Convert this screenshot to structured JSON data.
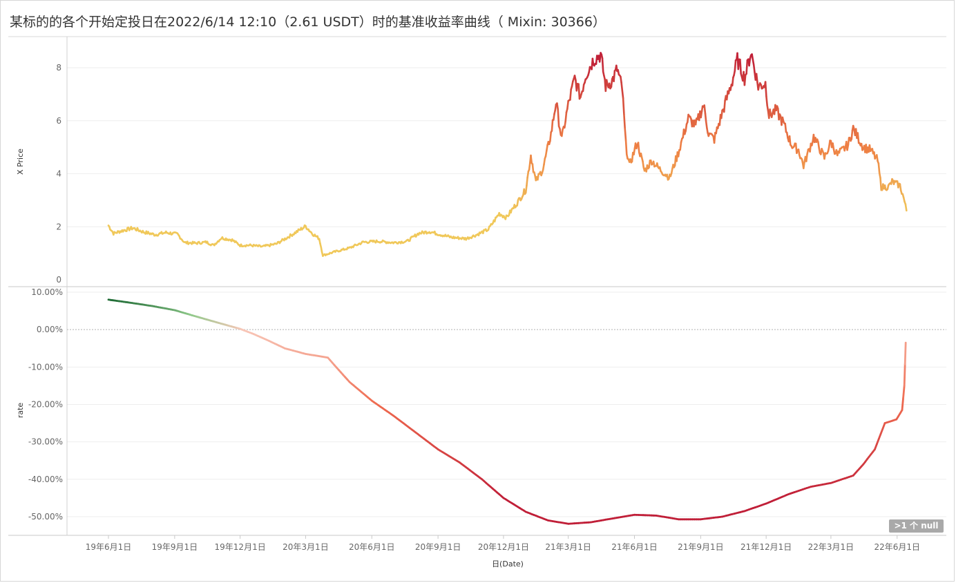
{
  "title": "某标的的各个开始定投日在2022/6/14 12:10（2.61 USDT）时的基准收益率曲线（ Mixin: 30366）",
  "null_badge": ">1 个 null",
  "colors": {
    "price_low": "#f0c85a",
    "price_mid": "#ee8044",
    "price_high": "#c01f38",
    "rate_pos_strong": "#1f6b35",
    "rate_pos_weak": "#8fc98a",
    "rate_zero": "#f8c7b8",
    "rate_neg_mid": "#ef6a4f",
    "rate_neg_strong": "#c01f38",
    "grid": "#eeeeee",
    "zero_line": "#b0b0b0"
  },
  "chart_data": [
    {
      "type": "line",
      "ylabel": "X Price",
      "ylim": [
        0,
        9
      ],
      "yticks": [
        0,
        2,
        4,
        6,
        8
      ],
      "x_range": [
        "2019-06-01",
        "2022-07-01"
      ],
      "series": [
        {
          "values": [
            [
              "2019-06-01",
              2.05
            ],
            [
              "2019-06-08",
              1.75
            ],
            [
              "2019-06-20",
              1.85
            ],
            [
              "2019-07-05",
              1.95
            ],
            [
              "2019-07-20",
              1.8
            ],
            [
              "2019-08-05",
              1.7
            ],
            [
              "2019-08-20",
              1.78
            ],
            [
              "2019-09-05",
              1.72
            ],
            [
              "2019-09-15",
              1.4
            ],
            [
              "2019-10-01",
              1.38
            ],
            [
              "2019-10-15",
              1.42
            ],
            [
              "2019-10-25",
              1.3
            ],
            [
              "2019-11-05",
              1.58
            ],
            [
              "2019-11-20",
              1.5
            ],
            [
              "2019-12-01",
              1.3
            ],
            [
              "2019-12-15",
              1.3
            ],
            [
              "2020-01-01",
              1.25
            ],
            [
              "2020-01-20",
              1.35
            ],
            [
              "2020-02-05",
              1.6
            ],
            [
              "2020-02-20",
              1.85
            ],
            [
              "2020-03-01",
              2.02
            ],
            [
              "2020-03-10",
              1.75
            ],
            [
              "2020-03-20",
              1.55
            ],
            [
              "2020-03-25",
              0.92
            ],
            [
              "2020-04-10",
              1.05
            ],
            [
              "2020-05-01",
              1.2
            ],
            [
              "2020-05-20",
              1.42
            ],
            [
              "2020-06-10",
              1.45
            ],
            [
              "2020-07-01",
              1.4
            ],
            [
              "2020-07-20",
              1.45
            ],
            [
              "2020-08-05",
              1.75
            ],
            [
              "2020-08-20",
              1.82
            ],
            [
              "2020-09-05",
              1.7
            ],
            [
              "2020-09-20",
              1.6
            ],
            [
              "2020-10-10",
              1.55
            ],
            [
              "2020-10-25",
              1.7
            ],
            [
              "2020-11-10",
              1.9
            ],
            [
              "2020-11-25",
              2.5
            ],
            [
              "2020-12-05",
              2.35
            ],
            [
              "2020-12-20",
              2.9
            ],
            [
              "2021-01-01",
              3.4
            ],
            [
              "2021-01-08",
              4.7
            ],
            [
              "2021-01-15",
              3.7
            ],
            [
              "2021-01-25",
              4.2
            ],
            [
              "2021-02-05",
              5.5
            ],
            [
              "2021-02-12",
              6.7
            ],
            [
              "2021-02-20",
              5.3
            ],
            [
              "2021-03-01",
              6.6
            ],
            [
              "2021-03-10",
              7.6
            ],
            [
              "2021-03-18",
              6.9
            ],
            [
              "2021-03-25",
              7.7
            ],
            [
              "2021-04-05",
              8.3
            ],
            [
              "2021-04-15",
              8.5
            ],
            [
              "2021-04-22",
              7.3
            ],
            [
              "2021-05-01",
              7.5
            ],
            [
              "2021-05-08",
              7.95
            ],
            [
              "2021-05-15",
              7.2
            ],
            [
              "2021-05-20",
              5.1
            ],
            [
              "2021-05-25",
              4.3
            ],
            [
              "2021-06-05",
              5.2
            ],
            [
              "2021-06-15",
              4.1
            ],
            [
              "2021-06-25",
              4.5
            ],
            [
              "2021-07-05",
              4.2
            ],
            [
              "2021-07-20",
              3.85
            ],
            [
              "2021-08-01",
              4.8
            ],
            [
              "2021-08-15",
              6.1
            ],
            [
              "2021-08-25",
              5.8
            ],
            [
              "2021-09-05",
              6.6
            ],
            [
              "2021-09-12",
              5.5
            ],
            [
              "2021-09-20",
              5.3
            ],
            [
              "2021-10-01",
              6.3
            ],
            [
              "2021-10-15",
              7.5
            ],
            [
              "2021-10-22",
              8.3
            ],
            [
              "2021-11-01",
              7.6
            ],
            [
              "2021-11-10",
              8.6
            ],
            [
              "2021-11-20",
              7.3
            ],
            [
              "2021-11-30",
              7.4
            ],
            [
              "2021-12-05",
              6.2
            ],
            [
              "2021-12-15",
              6.4
            ],
            [
              "2021-12-25",
              5.9
            ],
            [
              "2022-01-05",
              5.1
            ],
            [
              "2022-01-15",
              4.9
            ],
            [
              "2022-01-22",
              4.3
            ],
            [
              "2022-02-05",
              5.4
            ],
            [
              "2022-02-20",
              4.6
            ],
            [
              "2022-03-01",
              5.2
            ],
            [
              "2022-03-10",
              4.7
            ],
            [
              "2022-03-25",
              5.1
            ],
            [
              "2022-04-01",
              5.7
            ],
            [
              "2022-04-15",
              5.0
            ],
            [
              "2022-04-25",
              4.9
            ],
            [
              "2022-05-05",
              4.5
            ],
            [
              "2022-05-10",
              3.5
            ],
            [
              "2022-05-20",
              3.5
            ],
            [
              "2022-05-25",
              3.7
            ],
            [
              "2022-06-05",
              3.55
            ],
            [
              "2022-06-10",
              3.1
            ],
            [
              "2022-06-14",
              2.61
            ]
          ]
        }
      ]
    },
    {
      "type": "line",
      "ylabel": "rate",
      "ylim": [
        -0.55,
        0.105
      ],
      "yticks": [
        0.1,
        0.0,
        -0.1,
        -0.2,
        -0.3,
        -0.4,
        -0.5
      ],
      "ytick_labels": [
        "10.00%",
        "0.00%",
        "-10.00%",
        "-20.00%",
        "-30.00%",
        "-40.00%",
        "-50.00%"
      ],
      "x_range": [
        "2019-06-01",
        "2022-07-01"
      ],
      "series": [
        {
          "values": [
            [
              "2019-06-01",
              0.08
            ],
            [
              "2019-07-01",
              0.072
            ],
            [
              "2019-08-01",
              0.063
            ],
            [
              "2019-09-01",
              0.052
            ],
            [
              "2019-10-01",
              0.035
            ],
            [
              "2019-11-01",
              0.018
            ],
            [
              "2019-12-01",
              0.002
            ],
            [
              "2019-12-20",
              -0.012
            ],
            [
              "2020-01-10",
              -0.03
            ],
            [
              "2020-02-01",
              -0.05
            ],
            [
              "2020-03-01",
              -0.065
            ],
            [
              "2020-04-01",
              -0.075
            ],
            [
              "2020-04-10",
              -0.095
            ],
            [
              "2020-05-01",
              -0.14
            ],
            [
              "2020-06-01",
              -0.19
            ],
            [
              "2020-07-01",
              -0.23
            ],
            [
              "2020-08-01",
              -0.275
            ],
            [
              "2020-09-01",
              -0.32
            ],
            [
              "2020-10-01",
              -0.355
            ],
            [
              "2020-11-01",
              -0.4
            ],
            [
              "2020-12-01",
              -0.45
            ],
            [
              "2021-01-01",
              -0.487
            ],
            [
              "2021-02-01",
              -0.51
            ],
            [
              "2021-03-01",
              -0.519
            ],
            [
              "2021-04-01",
              -0.515
            ],
            [
              "2021-05-01",
              -0.505
            ],
            [
              "2021-06-01",
              -0.495
            ],
            [
              "2021-07-01",
              -0.497
            ],
            [
              "2021-08-01",
              -0.507
            ],
            [
              "2021-09-01",
              -0.507
            ],
            [
              "2021-10-01",
              -0.5
            ],
            [
              "2021-11-01",
              -0.485
            ],
            [
              "2021-12-01",
              -0.465
            ],
            [
              "2022-01-01",
              -0.44
            ],
            [
              "2022-02-01",
              -0.42
            ],
            [
              "2022-03-01",
              -0.41
            ],
            [
              "2022-04-01",
              -0.39
            ],
            [
              "2022-04-15",
              -0.36
            ],
            [
              "2022-05-01",
              -0.32
            ],
            [
              "2022-05-15",
              -0.25
            ],
            [
              "2022-05-31",
              -0.24
            ],
            [
              "2022-06-08",
              -0.215
            ],
            [
              "2022-06-11",
              -0.15
            ],
            [
              "2022-06-13",
              -0.035
            ]
          ]
        }
      ]
    }
  ],
  "x_axis": {
    "label": "日(Date)",
    "ticks": [
      {
        "date": "2019-06-01",
        "label": "19年6月1日"
      },
      {
        "date": "2019-09-01",
        "label": "19年9月1日"
      },
      {
        "date": "2019-12-01",
        "label": "19年12月1日"
      },
      {
        "date": "2020-03-01",
        "label": "20年3月1日"
      },
      {
        "date": "2020-06-01",
        "label": "20年6月1日"
      },
      {
        "date": "2020-09-01",
        "label": "20年9月1日"
      },
      {
        "date": "2020-12-01",
        "label": "20年12月1日"
      },
      {
        "date": "2021-03-01",
        "label": "21年3月1日"
      },
      {
        "date": "2021-06-01",
        "label": "21年6月1日"
      },
      {
        "date": "2021-09-01",
        "label": "21年9月1日"
      },
      {
        "date": "2021-12-01",
        "label": "21年12月1日"
      },
      {
        "date": "2022-03-01",
        "label": "22年3月1日"
      },
      {
        "date": "2022-06-01",
        "label": "22年6月1日"
      }
    ]
  }
}
